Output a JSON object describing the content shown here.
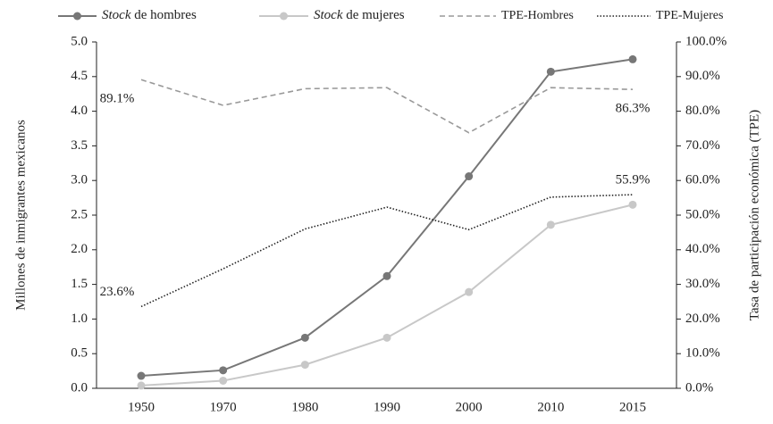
{
  "chart_data": {
    "type": "line",
    "categories": [
      "1950",
      "1970",
      "1980",
      "1990",
      "2000",
      "2010",
      "2015"
    ],
    "y_label": "Millones de inmigrantes mexicanos",
    "y2_label": "Tasa de participación económica (TPE)",
    "ylim": [
      0,
      5
    ],
    "yticks": [
      {
        "value": 0,
        "label": "0.0"
      },
      0.5,
      {
        "value": 1,
        "label": "1.0"
      },
      1.5,
      {
        "value": 2,
        "label": "2.0"
      },
      2.5,
      {
        "value": 3,
        "label": "3.0"
      },
      3.5,
      {
        "value": 4,
        "label": "4.0"
      },
      4.5,
      {
        "value": 5,
        "label": "5.0"
      }
    ],
    "y2lim": [
      0,
      100
    ],
    "y2ticks": [
      {
        "value": 0,
        "label": "0.0%"
      },
      {
        "value": 10,
        "label": "10.0%"
      },
      {
        "value": 20,
        "label": "20.0%"
      },
      {
        "value": 30,
        "label": "30.0%"
      },
      {
        "value": 40,
        "label": "40.0%"
      },
      {
        "value": 50,
        "label": "50.0%"
      },
      {
        "value": 60,
        "label": "60.0%"
      },
      {
        "value": 70,
        "label": "70.0%"
      },
      {
        "value": 80,
        "label": "80.0%"
      },
      {
        "value": 90,
        "label": "90.0%"
      },
      {
        "value": 100,
        "label": "100.0%"
      }
    ],
    "legend": "top",
    "series": [
      {
        "name": "Stock de hombres",
        "color": "#777777",
        "style": "solid",
        "markers": true,
        "values": [
          0.18,
          0.26,
          0.73,
          1.62,
          3.06,
          4.57,
          4.75
        ]
      },
      {
        "name": "Stock de mujeres",
        "color": "#c8c8c8",
        "style": "solid",
        "markers": true,
        "values": [
          0.04,
          0.11,
          0.34,
          0.73,
          1.39,
          2.36,
          2.65
        ]
      },
      {
        "name": "TPE-Hombres",
        "color": "#999999",
        "style": "dashed",
        "axis": "y2",
        "values": [
          89.1,
          81.7,
          86.5,
          86.8,
          73.8,
          86.8,
          86.3
        ],
        "value_labels": [
          "89.1%",
          null,
          null,
          null,
          null,
          null,
          "86.3%"
        ]
      },
      {
        "name": "TPE-Mujeres",
        "color": "#222222",
        "style": "dotted",
        "axis": "y2",
        "values": [
          23.6,
          34.5,
          46.0,
          52.3,
          45.8,
          55.2,
          55.9
        ],
        "value_labels": [
          "23.6%",
          null,
          null,
          null,
          null,
          null,
          "55.9%"
        ]
      }
    ]
  }
}
